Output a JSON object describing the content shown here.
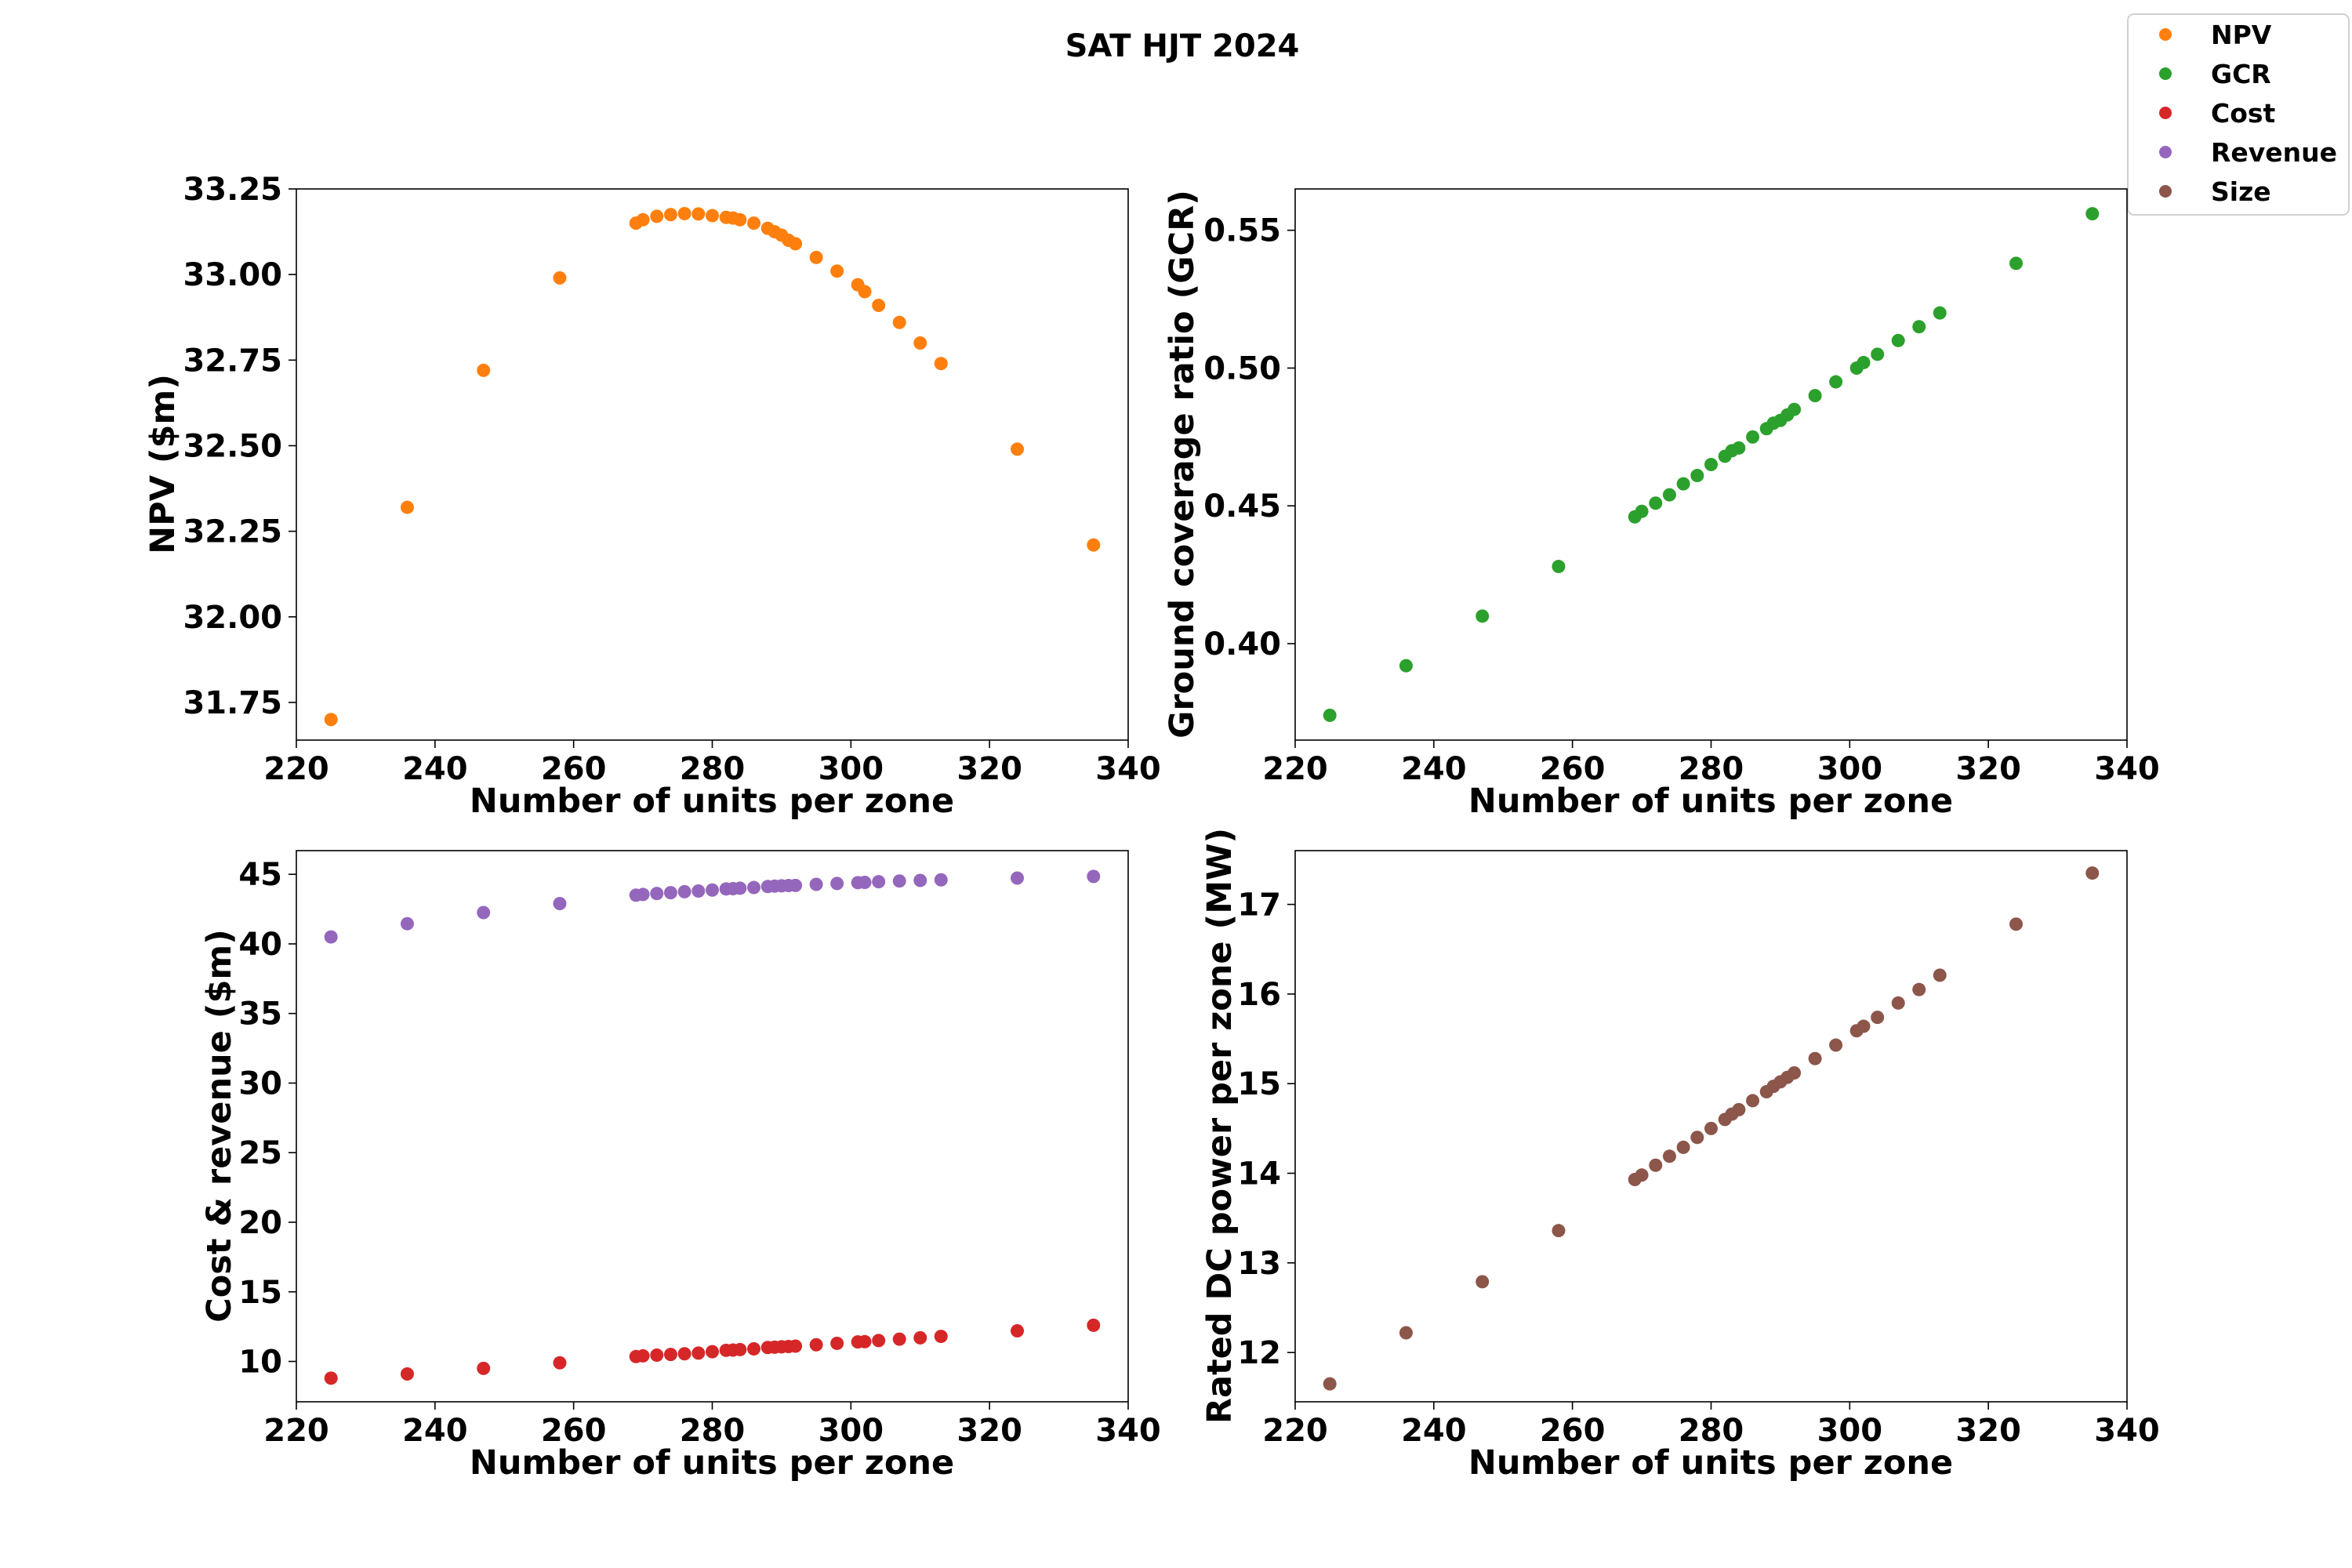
{
  "figure": {
    "title": "SAT HJT 2024"
  },
  "legend": {
    "placement": "top-right",
    "entries": [
      {
        "label": "NPV",
        "color": "#ff7f0e"
      },
      {
        "label": "GCR",
        "color": "#2ca02c"
      },
      {
        "label": "Cost",
        "color": "#d62728"
      },
      {
        "label": "Revenue",
        "color": "#9467bd"
      },
      {
        "label": "Size",
        "color": "#8c564b"
      }
    ]
  },
  "chart_data": [
    {
      "type": "scatter",
      "panel": "top-left",
      "xlabel": "Number of units per zone",
      "ylabel": "NPV ($m)",
      "xlim": [
        220,
        340
      ],
      "ylim": [
        31.64,
        33.25
      ],
      "xticks": [
        220,
        240,
        260,
        280,
        300,
        320,
        340
      ],
      "yticks": [
        31.75,
        32.0,
        32.25,
        32.5,
        32.75,
        33.0,
        33.25
      ],
      "ytick_labels": [
        "31.75",
        "32.00",
        "32.25",
        "32.50",
        "32.75",
        "33.00",
        "33.25"
      ],
      "x": [
        225,
        236,
        247,
        258,
        269,
        270,
        272,
        274,
        276,
        278,
        280,
        282,
        283,
        284,
        286,
        288,
        289,
        290,
        291,
        292,
        295,
        298,
        301,
        302,
        304,
        307,
        310,
        313,
        324,
        335
      ],
      "series": [
        {
          "name": "NPV",
          "color": "#ff7f0e",
          "values": [
            31.7,
            32.32,
            32.72,
            32.99,
            33.15,
            33.16,
            33.17,
            33.175,
            33.178,
            33.177,
            33.172,
            33.167,
            33.165,
            33.16,
            33.15,
            33.135,
            33.125,
            33.115,
            33.1,
            33.09,
            33.05,
            33.01,
            32.97,
            32.95,
            32.91,
            32.86,
            32.8,
            32.74,
            32.49,
            32.21
          ]
        }
      ]
    },
    {
      "type": "scatter",
      "panel": "top-right",
      "xlabel": "Number of units per zone",
      "ylabel": "Ground coverage ratio (GCR)",
      "xlim": [
        220,
        340
      ],
      "ylim": [
        0.365,
        0.565
      ],
      "xticks": [
        220,
        240,
        260,
        280,
        300,
        320,
        340
      ],
      "yticks": [
        0.4,
        0.45,
        0.5,
        0.55
      ],
      "ytick_labels": [
        "0.40",
        "0.45",
        "0.50",
        "0.55"
      ],
      "x": [
        225,
        236,
        247,
        258,
        269,
        270,
        272,
        274,
        276,
        278,
        280,
        282,
        283,
        284,
        286,
        288,
        289,
        290,
        291,
        292,
        295,
        298,
        301,
        302,
        304,
        307,
        310,
        313,
        324,
        335
      ],
      "series": [
        {
          "name": "GCR",
          "color": "#2ca02c",
          "values": [
            0.374,
            0.392,
            0.41,
            0.428,
            0.446,
            0.448,
            0.451,
            0.454,
            0.458,
            0.461,
            0.465,
            0.468,
            0.47,
            0.471,
            0.475,
            0.478,
            0.48,
            0.481,
            0.483,
            0.485,
            0.49,
            0.495,
            0.5,
            0.502,
            0.505,
            0.51,
            0.515,
            0.52,
            0.538,
            0.556
          ]
        }
      ]
    },
    {
      "type": "scatter",
      "panel": "bottom-left",
      "xlabel": "Number of units per zone",
      "ylabel": "Cost & revenue ($m)",
      "xlim": [
        220,
        340
      ],
      "ylim": [
        7.1,
        46.7
      ],
      "xticks": [
        220,
        240,
        260,
        280,
        300,
        320,
        340
      ],
      "yticks": [
        10,
        15,
        20,
        25,
        30,
        35,
        40,
        45
      ],
      "ytick_labels": [
        "10",
        "15",
        "20",
        "25",
        "30",
        "35",
        "40",
        "45"
      ],
      "x": [
        225,
        236,
        247,
        258,
        269,
        270,
        272,
        274,
        276,
        278,
        280,
        282,
        283,
        284,
        286,
        288,
        289,
        290,
        291,
        292,
        295,
        298,
        301,
        302,
        304,
        307,
        310,
        313,
        324,
        335
      ],
      "series": [
        {
          "name": "Cost",
          "color": "#d62728",
          "values": [
            8.8,
            9.1,
            9.5,
            9.9,
            10.35,
            10.4,
            10.45,
            10.5,
            10.55,
            10.6,
            10.7,
            10.8,
            10.82,
            10.85,
            10.9,
            11.0,
            11.02,
            11.05,
            11.07,
            11.1,
            11.2,
            11.3,
            11.4,
            11.42,
            11.5,
            11.6,
            11.7,
            11.8,
            12.2,
            12.6
          ]
        },
        {
          "name": "Revenue",
          "color": "#9467bd",
          "values": [
            40.5,
            41.45,
            42.25,
            42.9,
            43.5,
            43.55,
            43.62,
            43.68,
            43.75,
            43.8,
            43.87,
            43.95,
            43.97,
            44.0,
            44.05,
            44.12,
            44.15,
            44.17,
            44.19,
            44.2,
            44.28,
            44.34,
            44.4,
            44.42,
            44.47,
            44.52,
            44.56,
            44.6,
            44.73,
            44.85
          ]
        }
      ]
    },
    {
      "type": "scatter",
      "panel": "bottom-right",
      "xlabel": "Number of units per zone",
      "ylabel": "Rated DC power per zone (MW)",
      "xlim": [
        220,
        340
      ],
      "ylim": [
        11.45,
        17.6
      ],
      "xticks": [
        220,
        240,
        260,
        280,
        300,
        320,
        340
      ],
      "yticks": [
        12,
        13,
        14,
        15,
        16,
        17
      ],
      "ytick_labels": [
        "12",
        "13",
        "14",
        "15",
        "16",
        "17"
      ],
      "x": [
        225,
        236,
        247,
        258,
        269,
        270,
        272,
        274,
        276,
        278,
        280,
        282,
        283,
        284,
        286,
        288,
        289,
        290,
        291,
        292,
        295,
        298,
        301,
        302,
        304,
        307,
        310,
        313,
        324,
        335
      ],
      "series": [
        {
          "name": "Size",
          "color": "#8c564b",
          "values": [
            11.65,
            12.22,
            12.79,
            13.36,
            13.93,
            13.98,
            14.09,
            14.19,
            14.29,
            14.4,
            14.5,
            14.6,
            14.66,
            14.71,
            14.81,
            14.91,
            14.97,
            15.02,
            15.07,
            15.12,
            15.28,
            15.43,
            15.59,
            15.64,
            15.74,
            15.9,
            16.05,
            16.21,
            16.78,
            17.35
          ]
        }
      ]
    }
  ]
}
